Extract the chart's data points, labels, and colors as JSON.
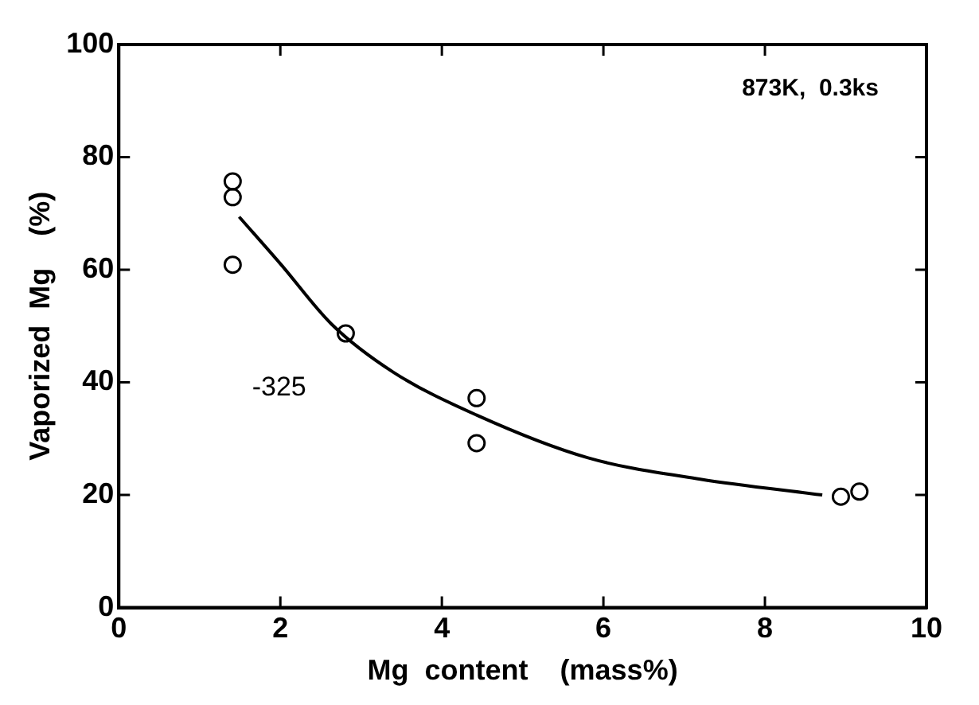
{
  "chart_data": {
    "type": "scatter",
    "xlabel": "Mg  content    (mass%)",
    "ylabel": "Vaporized  Mg    (%)",
    "annotations": [
      "873K,  0.3ks",
      "-325"
    ],
    "xlim": [
      0,
      10
    ],
    "xticks": [
      0,
      2,
      4,
      6,
      8,
      10
    ],
    "ylim": [
      0,
      100
    ],
    "yticks": [
      0,
      20,
      40,
      60,
      80,
      100
    ],
    "grid": false,
    "legend": false,
    "marker": "circle",
    "series": [
      {
        "type": "scatter",
        "color": "#000000",
        "x": [
          1.41,
          1.41,
          1.41,
          2.81,
          4.43,
          4.43,
          8.94,
          9.17
        ],
        "values": [
          75.7,
          72.9,
          60.9,
          48.7,
          37.2,
          29.2,
          19.7,
          20.6
        ]
      },
      {
        "type": "line",
        "color": "#000000",
        "marker": "none",
        "x": [
          1.49,
          2.01,
          2.63,
          3.4,
          4.43,
          5.81,
          7.2,
          8.71
        ],
        "values": [
          69.4,
          60.9,
          50.4,
          41.8,
          34.2,
          26.6,
          22.8,
          20.0
        ]
      }
    ]
  }
}
